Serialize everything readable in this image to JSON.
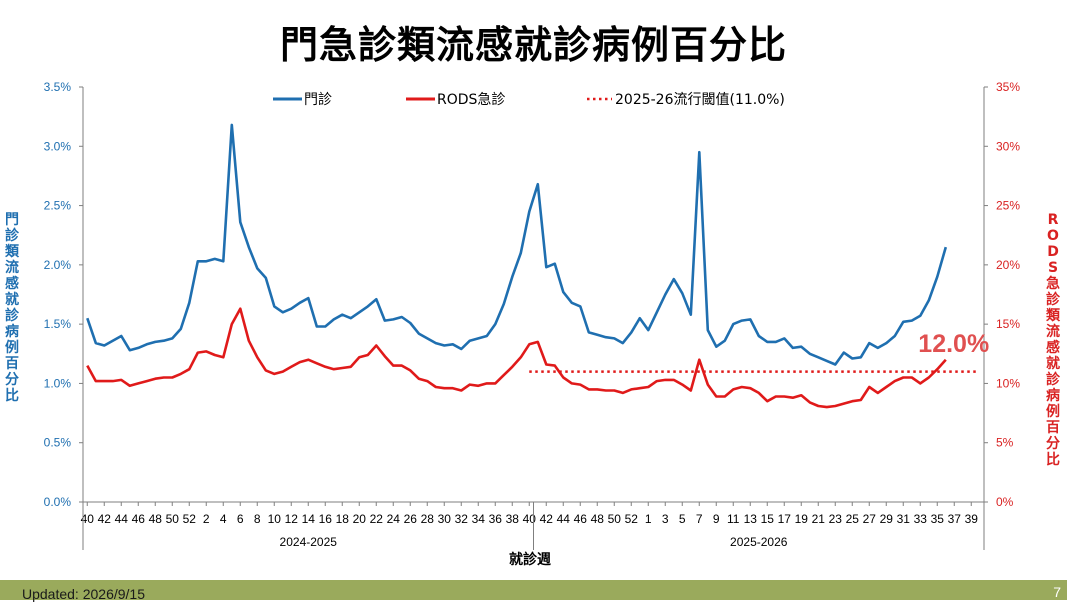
{
  "title": "門急診類流感就診病例百分比",
  "updated": "Updated: 2026/9/15",
  "page_number": "7",
  "chart_data": {
    "type": "line",
    "title": "門急診類流感就診病例百分比",
    "xlabel": "就診週",
    "ylabel_left": "門\n診\n類\n流\n感\n就\n診\n病\n例\n百\n分\n比",
    "ylabel_right": "R\nO\nD\nS\n急\n診\n類\n流\n感\n就\n診\n病\n例\n百\n分\n比",
    "ylim_left": [
      0,
      3.5
    ],
    "ylim_right": [
      0,
      35
    ],
    "yticks_left": [
      "0.0%",
      "0.5%",
      "1.0%",
      "1.5%",
      "2.0%",
      "2.5%",
      "3.0%",
      "3.5%"
    ],
    "yticks_right": [
      "0%",
      "5%",
      "10%",
      "15%",
      "20%",
      "25%",
      "30%",
      "35%"
    ],
    "season_labels": [
      "2024-2025",
      "2025-2026"
    ],
    "x_tick_labels": [
      "40",
      "42",
      "44",
      "46",
      "48",
      "50",
      "52",
      "2",
      "4",
      "6",
      "8",
      "10",
      "12",
      "14",
      "16",
      "18",
      "20",
      "22",
      "24",
      "26",
      "28",
      "30",
      "32",
      "34",
      "36",
      "38",
      "40",
      "42",
      "44",
      "46",
      "48",
      "50",
      "52",
      "1",
      "3",
      "5",
      "7",
      "9",
      "11",
      "13",
      "15",
      "17",
      "19",
      "21",
      "23",
      "25",
      "27",
      "29",
      "31",
      "33",
      "35",
      "37",
      "39"
    ],
    "legend": {
      "placement": "top-center",
      "entries": [
        "門診",
        "RODS急診",
        "2025-26流行閾值(11.0%)"
      ]
    },
    "annotation": "12.0%",
    "threshold": 11.0,
    "series": [
      {
        "name": "門診",
        "axis": "left",
        "color": "#1f6fb0",
        "values": [
          1.55,
          1.34,
          1.32,
          1.36,
          1.4,
          1.28,
          1.3,
          1.33,
          1.35,
          1.36,
          1.38,
          1.46,
          1.68,
          2.03,
          2.03,
          2.05,
          2.03,
          3.18,
          2.36,
          2.15,
          1.97,
          1.89,
          1.65,
          1.6,
          1.63,
          1.68,
          1.72,
          1.48,
          1.48,
          1.54,
          1.58,
          1.55,
          1.6,
          1.65,
          1.71,
          1.53,
          1.54,
          1.56,
          1.51,
          1.42,
          1.38,
          1.34,
          1.32,
          1.33,
          1.29,
          1.36,
          1.38,
          1.4,
          1.5,
          1.67,
          1.9,
          2.1,
          2.45,
          2.68,
          1.98,
          2.01,
          1.77,
          1.68,
          1.65,
          1.43,
          1.41,
          1.39,
          1.38,
          1.34,
          1.43,
          1.55,
          1.45,
          1.6,
          1.75,
          1.88,
          1.76,
          1.58,
          2.95,
          1.45,
          1.31,
          1.36,
          1.5,
          1.53,
          1.54,
          1.4,
          1.35,
          1.35,
          1.38,
          1.3,
          1.31,
          1.25,
          1.22,
          1.19,
          1.16,
          1.26,
          1.21,
          1.22,
          1.34,
          1.3,
          1.34,
          1.4,
          1.52,
          1.53,
          1.57,
          1.7,
          1.9,
          2.15
        ]
      },
      {
        "name": "RODS急診",
        "axis": "right",
        "color": "#e01a1a",
        "values": [
          11.5,
          10.2,
          10.2,
          10.2,
          10.3,
          9.8,
          10.0,
          10.2,
          10.4,
          10.5,
          10.5,
          10.8,
          11.2,
          12.6,
          12.7,
          12.4,
          12.2,
          15.0,
          16.3,
          13.6,
          12.2,
          11.1,
          10.8,
          11.0,
          11.4,
          11.8,
          12.0,
          11.7,
          11.4,
          11.2,
          11.3,
          11.4,
          12.2,
          12.4,
          13.2,
          12.3,
          11.5,
          11.5,
          11.1,
          10.4,
          10.2,
          9.7,
          9.6,
          9.6,
          9.4,
          9.9,
          9.8,
          10.0,
          10.0,
          10.7,
          11.4,
          12.2,
          13.3,
          13.5,
          11.6,
          11.5,
          10.5,
          10.0,
          9.9,
          9.5,
          9.5,
          9.4,
          9.4,
          9.2,
          9.5,
          9.6,
          9.7,
          10.2,
          10.3,
          10.3,
          9.9,
          9.4,
          12.0,
          9.9,
          8.9,
          8.9,
          9.5,
          9.7,
          9.6,
          9.2,
          8.5,
          8.9,
          8.9,
          8.8,
          9.0,
          8.4,
          8.1,
          8.0,
          8.1,
          8.3,
          8.5,
          8.6,
          9.7,
          9.2,
          9.7,
          10.2,
          10.5,
          10.5,
          10.0,
          10.5,
          11.2,
          12.0
        ]
      }
    ]
  }
}
